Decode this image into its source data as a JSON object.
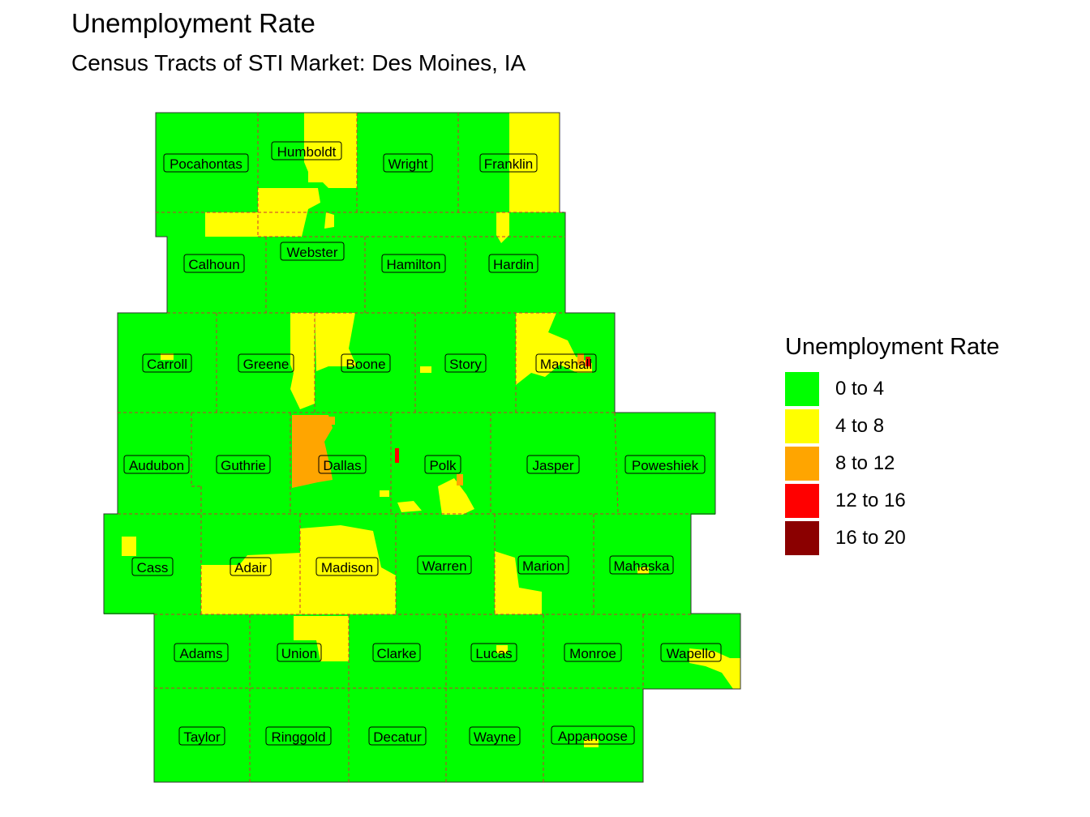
{
  "title": "Unemployment Rate",
  "subtitle": "Census Tracts of STI Market: Des Moines, IA",
  "legend": {
    "title": "Unemployment Rate",
    "items": [
      {
        "label": "0 to 4",
        "color": "#00ff00"
      },
      {
        "label": "4 to 8",
        "color": "#ffff00"
      },
      {
        "label": "8 to 12",
        "color": "#ffa500"
      },
      {
        "label": "12 to 16",
        "color": "#ff0000"
      },
      {
        "label": "16 to 20",
        "color": "#8b0000"
      }
    ]
  },
  "boundary_color": "#cc3333",
  "counties": [
    "Pocahontas",
    "Humboldt",
    "Wright",
    "Franklin",
    "Calhoun",
    "Webster",
    "Hamilton",
    "Hardin",
    "Carroll",
    "Greene",
    "Boone",
    "Story",
    "Marshall",
    "Audubon",
    "Guthrie",
    "Dallas",
    "Polk",
    "Jasper",
    "Poweshiek",
    "Cass",
    "Adair",
    "Madison",
    "Warren",
    "Marion",
    "Mahaska",
    "Adams",
    "Union",
    "Clarke",
    "Lucas",
    "Monroe",
    "Wapello",
    "Taylor",
    "Ringgold",
    "Decatur",
    "Wayne",
    "Appanoose"
  ]
}
